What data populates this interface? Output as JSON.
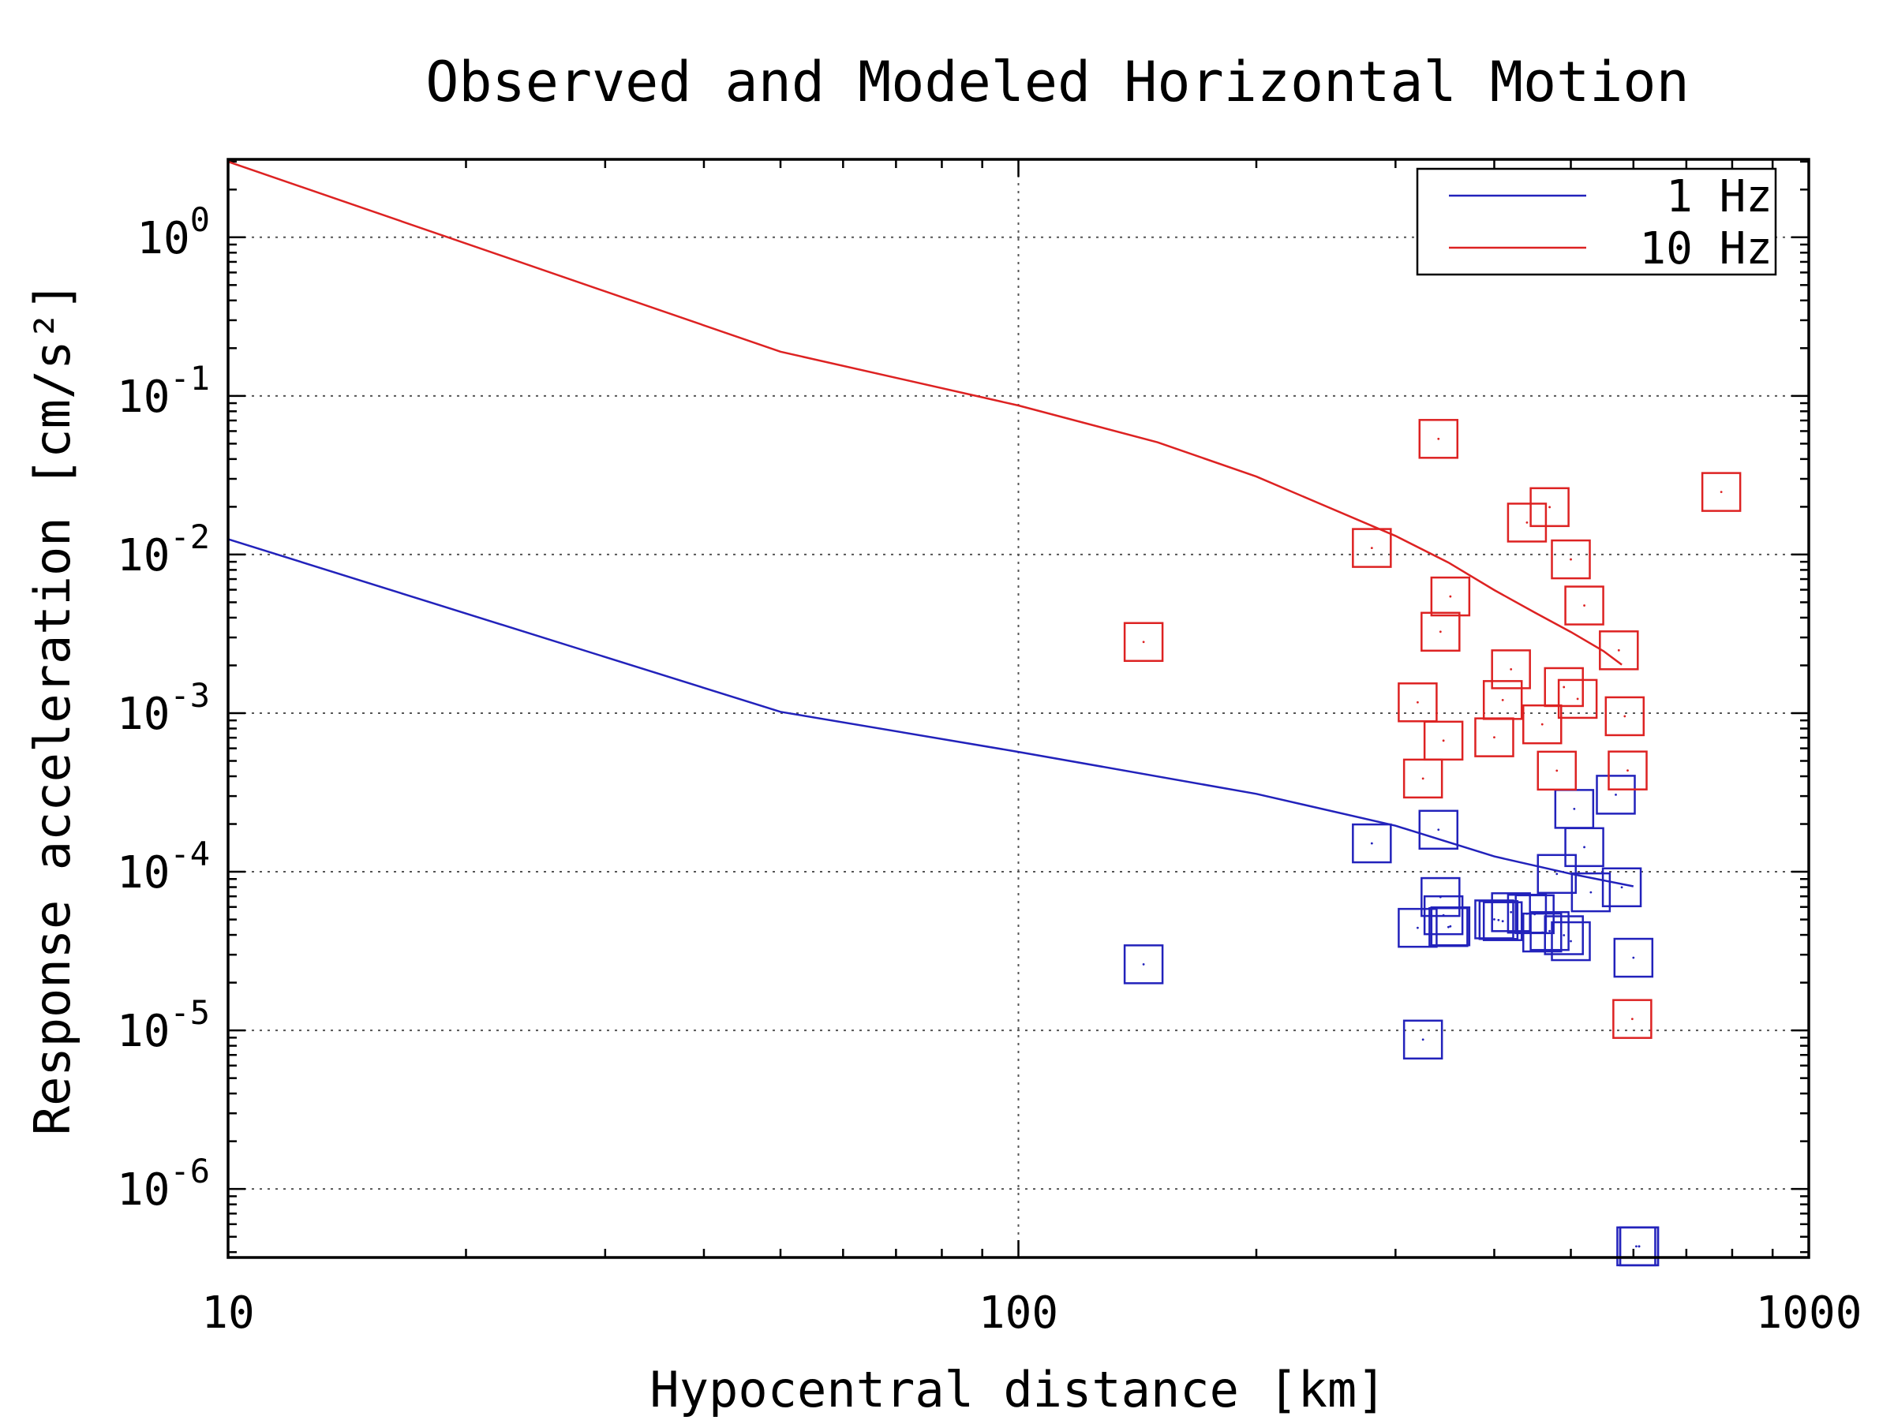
{
  "chart_data": {
    "type": "scatter",
    "title": "Observed and Modeled Horizontal Motion",
    "xlabel": "Hypocentral distance [km]",
    "ylabel": "Response acceleration [cm/s²]",
    "x_scale": "log",
    "y_scale": "log",
    "xlim": [
      10,
      1000
    ],
    "ylim": [
      3.7e-07,
      3.1
    ],
    "grid": true,
    "legend_position": "top-right",
    "x_tick_labels": [
      "10",
      "100",
      "1000"
    ],
    "y_tick_labels": [
      {
        "base": "10",
        "exp": "0"
      },
      {
        "base": "10",
        "exp": "-1"
      },
      {
        "base": "10",
        "exp": "-2"
      },
      {
        "base": "10",
        "exp": "-3"
      },
      {
        "base": "10",
        "exp": "-4"
      },
      {
        "base": "10",
        "exp": "-5"
      },
      {
        "base": "10",
        "exp": "-6"
      }
    ],
    "series": [
      {
        "name": "1 Hz",
        "color": "#2222bb",
        "model_x": [
          10,
          50,
          100,
          200,
          300,
          400,
          500,
          600
        ],
        "model_y": [
          0.0125,
          0.00102,
          0.00057,
          0.00031,
          0.000195,
          0.000125,
          9.7e-05,
          8.1e-05
        ],
        "observed_x": [
          144,
          280,
          320,
          325,
          340,
          342,
          345,
          350,
          352,
          400,
          405,
          410,
          420,
          440,
          450,
          460,
          470,
          480,
          490,
          500,
          505,
          520,
          530,
          570,
          580,
          600,
          605,
          610,
          610
        ],
        "observed_y": [
          2.61e-05,
          0.000151,
          4.43e-05,
          8.75e-06,
          0.000184,
          6.93e-05,
          5.32e-05,
          4.48e-05,
          4.53e-05,
          5.01e-05,
          4.96e-05,
          4.88e-05,
          5.56e-05,
          5.44e-05,
          5.4e-05,
          4.14e-05,
          4.23e-05,
          9.69e-05,
          3.98e-05,
          3.65e-05,
          0.000249,
          0.000143,
          7.42e-05,
          0.000306,
          7.98e-05,
          2.87e-05,
          4.35e-07,
          4.35e-07,
          4.35e-07
        ]
      },
      {
        "name": "10 Hz",
        "color": "#dd2222",
        "model_x": [
          10,
          50,
          100,
          150,
          200,
          300,
          350,
          400,
          450,
          500,
          550,
          580
        ],
        "model_y": [
          3.0,
          0.19,
          0.087,
          0.051,
          0.031,
          0.0131,
          0.0089,
          0.00597,
          0.00431,
          0.00325,
          0.00246,
          0.00202
        ],
        "observed_x": [
          144,
          280,
          320,
          325,
          340,
          342,
          345,
          352,
          400,
          410,
          420,
          440,
          460,
          470,
          480,
          490,
          500,
          510,
          520,
          575,
          585,
          590,
          598,
          775
        ],
        "observed_y": [
          0.00281,
          0.011,
          0.00117,
          0.000387,
          0.0536,
          0.00326,
          0.000671,
          0.00544,
          0.000704,
          0.00121,
          0.00189,
          0.0159,
          0.00085,
          0.0199,
          0.000434,
          0.00146,
          0.00932,
          0.00123,
          0.00477,
          0.00249,
          0.000956,
          0.000435,
          1.18e-05,
          0.0248
        ]
      }
    ]
  }
}
